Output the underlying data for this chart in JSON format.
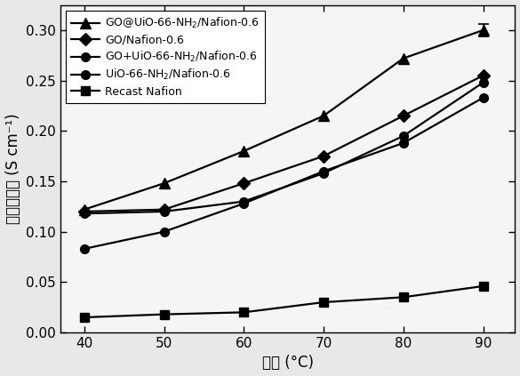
{
  "x": [
    40,
    50,
    60,
    70,
    80,
    90
  ],
  "series": [
    {
      "key": "GO@UiO-66-NH2/Nafion-0.6",
      "y": [
        0.122,
        0.148,
        0.18,
        0.215,
        0.272,
        0.3
      ],
      "marker": "^",
      "markersize": 8,
      "linewidth": 1.6,
      "color": "#000000",
      "label": "GO@UiO-66-NH$_2$/Nafion-0.6",
      "errorbar_at_90": 0.012
    },
    {
      "key": "GO/Nafion-0.6",
      "y": [
        0.12,
        0.122,
        0.148,
        0.175,
        0.215,
        0.255
      ],
      "marker": "D",
      "markersize": 7,
      "linewidth": 1.6,
      "color": "#000000",
      "label": "GO/Nafion-0.6"
    },
    {
      "key": "GO+UiO-66-NH2/Nafion-0.6",
      "y": [
        0.118,
        0.12,
        0.13,
        0.158,
        0.195,
        0.248
      ],
      "marker": "o",
      "markersize": 7,
      "linewidth": 1.6,
      "color": "#000000",
      "label": "GO+UiO-66-NH$_2$/Nafion-0.6"
    },
    {
      "key": "UiO-66-NH2/Nafion-0.6",
      "y": [
        0.083,
        0.1,
        0.128,
        0.16,
        0.188,
        0.233
      ],
      "marker": "o",
      "markersize": 7,
      "linewidth": 1.6,
      "color": "#000000",
      "label": "UiO-66-NH$_2$/Nafion-0.6"
    },
    {
      "key": "Recast Nafion",
      "y": [
        0.015,
        0.018,
        0.02,
        0.03,
        0.035,
        0.046
      ],
      "marker": "s",
      "markersize": 7,
      "linewidth": 1.6,
      "color": "#000000",
      "label": "Recast Nafion"
    }
  ],
  "xlabel_cn": "温度",
  "xlabel_unit": " (°C)",
  "ylabel_cn": "质子传导率",
  "ylabel_unit": " (S cm⁻¹)",
  "xlim": [
    37,
    94
  ],
  "ylim": [
    0.0,
    0.325
  ],
  "yticks": [
    0.0,
    0.05,
    0.1,
    0.15,
    0.2,
    0.25,
    0.3
  ],
  "xticks": [
    40,
    50,
    60,
    70,
    80,
    90
  ],
  "background_color": "#e8e8e8",
  "plot_bg_color": "#f5f5f5",
  "legend_fontsize": 9,
  "axis_fontsize": 12,
  "tick_fontsize": 11
}
